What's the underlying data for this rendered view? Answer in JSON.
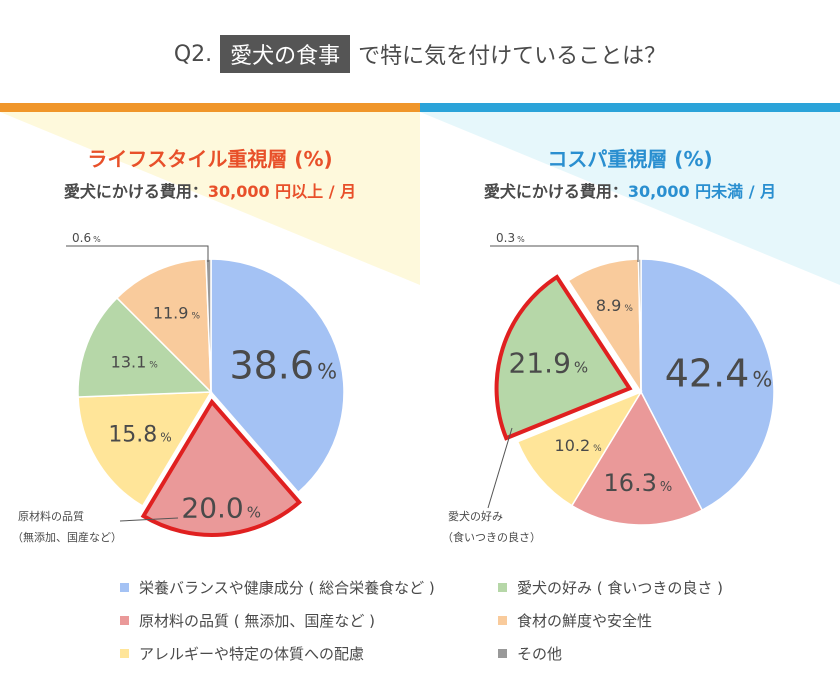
{
  "header": {
    "q_label": "Q2.",
    "highlight": "愛犬の食事",
    "rest": "で特に気を付けていることは？"
  },
  "colors": {
    "accent_left": "#f0962a",
    "accent_right": "#2ba3d9",
    "left_title": "#e8502a",
    "right_title": "#2a8fd0",
    "highlight_outline": "#e02020",
    "bg_left_tri": "#fef9dc",
    "bg_right_tri": "#e6f7fb"
  },
  "left": {
    "title": "ライフスタイル重視層 (%)",
    "cost_label": "愛犬にかける費用：",
    "cost_value": "30,000 円以上 / 月",
    "callout_line1": "原材料の品質",
    "callout_line2": "（無添加、国産など）"
  },
  "right": {
    "title": "コスパ重視層 (%)",
    "cost_label": "愛犬にかける費用：",
    "cost_value": "30,000 円未満 / 月",
    "callout_line1": "愛犬の好み",
    "callout_line2": "（食いつきの良さ）"
  },
  "legend": [
    {
      "label": "栄養バランスや健康成分 ( 総合栄養食など )",
      "color": "#a4c2f4"
    },
    {
      "label": "愛犬の好み ( 食いつきの良さ )",
      "color": "#b6d7a8"
    },
    {
      "label": "原材料の品質 ( 無添加、国産など )",
      "color": "#ea9999"
    },
    {
      "label": "食材の鮮度や安全性",
      "color": "#f9cb9c"
    },
    {
      "label": "アレルギーや特定の体質への配慮",
      "color": "#ffe599"
    },
    {
      "label": "その他",
      "color": "#999999"
    }
  ],
  "chart_data": [
    {
      "type": "pie",
      "title": "ライフスタイル重視層 (%)",
      "slices": [
        {
          "name": "栄養バランスや健康成分 ( 総合栄養食など )",
          "value": 38.6,
          "label": "38.6",
          "color": "#a4c2f4"
        },
        {
          "name": "原材料の品質 ( 無添加、国産など )",
          "value": 20.0,
          "label": "20.0",
          "color": "#ea9999",
          "highlight": true
        },
        {
          "name": "アレルギーや特定の体質への配慮",
          "value": 15.8,
          "label": "15.8",
          "color": "#ffe599"
        },
        {
          "name": "愛犬の好み ( 食いつきの良さ )",
          "value": 13.1,
          "label": "13.1",
          "color": "#b6d7a8"
        },
        {
          "name": "食材の鮮度や安全性",
          "value": 11.9,
          "label": "11.9",
          "color": "#f9cb9c"
        },
        {
          "name": "その他",
          "value": 0.6,
          "label": "0.6",
          "color": "#999999"
        }
      ],
      "unit": "%"
    },
    {
      "type": "pie",
      "title": "コスパ重視層 (%)",
      "slices": [
        {
          "name": "栄養バランスや健康成分 ( 総合栄養食など )",
          "value": 42.4,
          "label": "42.4",
          "color": "#a4c2f4"
        },
        {
          "name": "原材料の品質 ( 無添加、国産など )",
          "value": 16.3,
          "label": "16.3",
          "color": "#ea9999"
        },
        {
          "name": "アレルギーや特定の体質への配慮",
          "value": 10.2,
          "label": "10.2",
          "color": "#ffe599"
        },
        {
          "name": "愛犬の好み ( 食いつきの良さ )",
          "value": 21.9,
          "label": "21.9",
          "color": "#b6d7a8",
          "highlight": true
        },
        {
          "name": "食材の鮮度や安全性",
          "value": 8.9,
          "label": "8.9",
          "color": "#f9cb9c"
        },
        {
          "name": "その他",
          "value": 0.3,
          "label": "0.3",
          "color": "#999999"
        }
      ],
      "unit": "%"
    }
  ]
}
